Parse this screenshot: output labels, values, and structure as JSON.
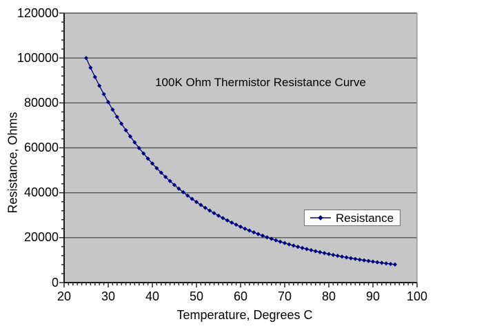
{
  "chart_data": {
    "type": "line",
    "title": "100K Ohm Thermistor Resistance Curve",
    "xlabel": "Temperature, Degrees C",
    "ylabel": "Resistance, Ohms",
    "xlim": [
      20,
      100
    ],
    "ylim": [
      0,
      120000
    ],
    "x_major_ticks": [
      20,
      30,
      40,
      50,
      60,
      70,
      80,
      90,
      100
    ],
    "x_minor_step": 1,
    "y_major_ticks": [
      0,
      20000,
      40000,
      60000,
      80000,
      100000,
      120000
    ],
    "y_minor_step": 4000,
    "grid": "horizontal-major-only",
    "legend": {
      "position": "inside-right",
      "label": "Resistance",
      "marker": "diamond"
    },
    "series": [
      {
        "name": "Resistance",
        "color": "#000080",
        "marker": "diamond",
        "x": [
          25,
          26,
          27,
          28,
          29,
          30,
          31,
          32,
          33,
          34,
          35,
          36,
          37,
          38,
          39,
          40,
          41,
          42,
          43,
          44,
          45,
          46,
          47,
          48,
          49,
          50,
          51,
          52,
          53,
          54,
          55,
          56,
          57,
          58,
          59,
          60,
          61,
          62,
          63,
          64,
          65,
          66,
          67,
          68,
          69,
          70,
          71,
          72,
          73,
          74,
          75,
          76,
          77,
          78,
          79,
          80,
          81,
          82,
          83,
          84,
          85,
          86,
          87,
          88,
          89,
          90,
          91,
          92,
          93,
          94,
          95
        ],
        "values": [
          100000,
          95668,
          91551,
          87636,
          83913,
          80371,
          77001,
          73793,
          70738,
          67828,
          65055,
          62413,
          59894,
          57492,
          55201,
          53015,
          50928,
          48936,
          47034,
          45217,
          43481,
          41822,
          40236,
          38720,
          37269,
          35882,
          34554,
          33283,
          32066,
          30901,
          29784,
          28715,
          27690,
          26707,
          25765,
          24862,
          23995,
          23163,
          22365,
          21599,
          20864,
          20157,
          19479,
          18827,
          18200,
          17598,
          17019,
          16463,
          15927,
          15414,
          14917,
          14440,
          13981,
          13539,
          13113,
          12703,
          12308,
          11928,
          11561,
          11207,
          10866,
          10538,
          10221,
          9916,
          9621,
          9336,
          9061,
          8795,
          8539,
          8292,
          8053
        ]
      }
    ],
    "colors": {
      "series": "#000080",
      "plot_background": "#c6c6c6",
      "gridline": "#555555",
      "axis": "#1a1a1a",
      "plot_right_border": "#9a9a9a",
      "text": "#000000"
    }
  }
}
